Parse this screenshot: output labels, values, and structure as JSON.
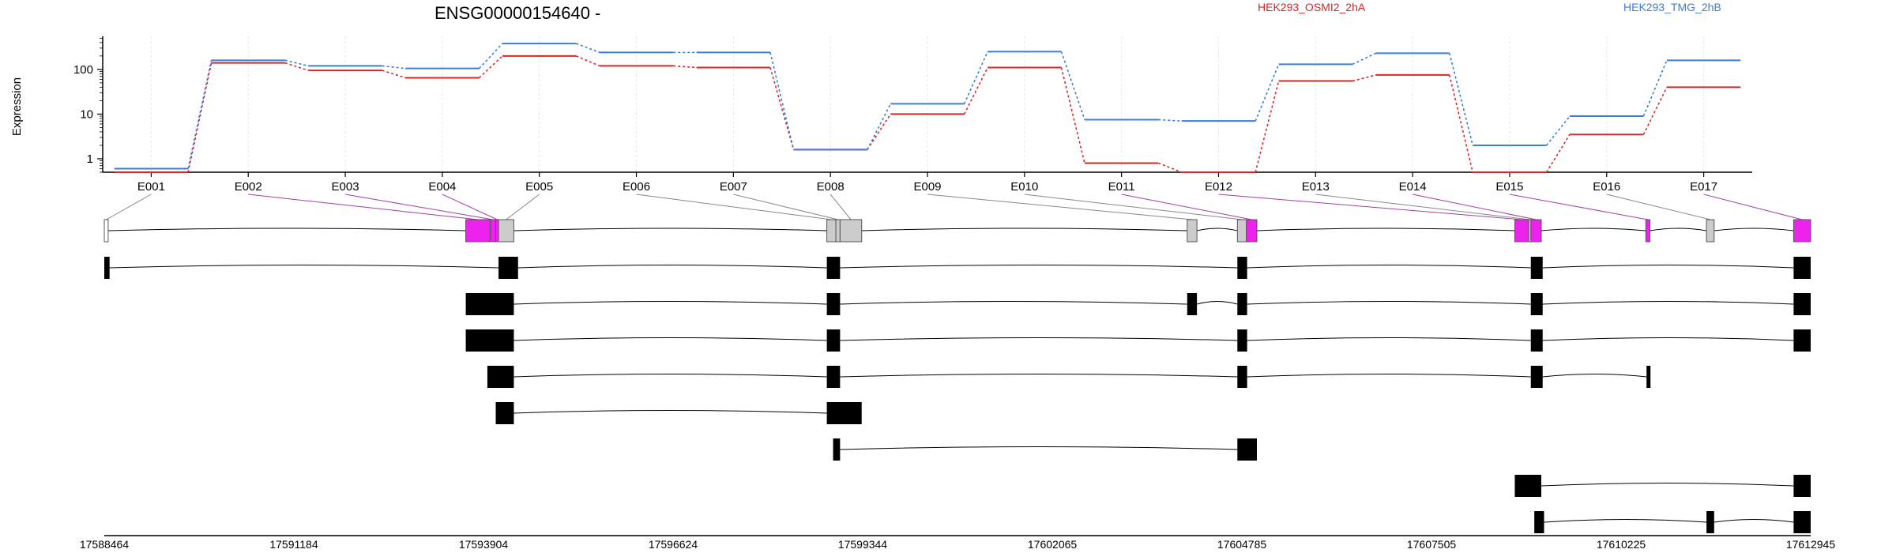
{
  "chart_data": {
    "type": "line",
    "title": "ENSG00000154640 -",
    "ylabel": "Expression",
    "xlabel": "",
    "yscale": "log",
    "ylim": [
      0.5,
      550
    ],
    "yticks": [
      "1",
      "10",
      "100"
    ],
    "ytick_values": [
      1,
      10,
      100
    ],
    "grid": true,
    "legend_placement": "top-right",
    "categories": [
      "E001",
      "E002",
      "E003",
      "E004",
      "E005",
      "E006",
      "E007",
      "E008",
      "E009",
      "E010",
      "E011",
      "E012",
      "E013",
      "E014",
      "E015",
      "E016",
      "E017"
    ],
    "series": [
      {
        "name": "HEK293_OSMI2_2hA",
        "color": "#d62728",
        "values": [
          0.5,
          140,
          95,
          65,
          200,
          120,
          110,
          1.6,
          10,
          110,
          0.8,
          0.5,
          55,
          75,
          0.5,
          3.5,
          40
        ]
      },
      {
        "name": "HEK293_TMG_2hB",
        "color": "#3b7dd8",
        "values": [
          0.6,
          160,
          120,
          105,
          380,
          240,
          240,
          1.6,
          17,
          250,
          7.5,
          7,
          130,
          230,
          2,
          9,
          160
        ]
      }
    ],
    "genome_axis": {
      "min": 17588464,
      "max": 17612945,
      "ticks": [
        17588464,
        17591184,
        17593904,
        17596624,
        17599344,
        17602065,
        17604785,
        17607505,
        17610225,
        17612945
      ],
      "tick_labels": [
        "17588464",
        "17591184",
        "17593904",
        "17596624",
        "17599344",
        "17602065",
        "17604785",
        "17607505",
        "17610225",
        "17612945"
      ]
    },
    "gene_model": {
      "color_highlight": "#ee22ee",
      "color_normal": "#cccccc",
      "exons": [
        {
          "id": "E001",
          "start": 17588464,
          "end": 17588520,
          "highlight": false,
          "outline": true
        },
        {
          "id": "E002",
          "start": 17593650,
          "end": 17594000,
          "highlight": true
        },
        {
          "id": "E003",
          "start": 17594000,
          "end": 17594080,
          "highlight": true
        },
        {
          "id": "E004",
          "start": 17594080,
          "end": 17594120,
          "highlight": true
        },
        {
          "id": "E005",
          "start": 17594120,
          "end": 17594340,
          "highlight": false
        },
        {
          "id": "E006",
          "start": 17598830,
          "end": 17598960,
          "highlight": false
        },
        {
          "id": "E007",
          "start": 17598960,
          "end": 17599020,
          "highlight": false
        },
        {
          "id": "E008",
          "start": 17599020,
          "end": 17599330,
          "highlight": false
        },
        {
          "id": "E009",
          "start": 17604000,
          "end": 17604140,
          "highlight": false
        },
        {
          "id": "E010",
          "start": 17604720,
          "end": 17604850,
          "highlight": false
        },
        {
          "id": "E011",
          "start": 17604850,
          "end": 17605000,
          "highlight": true
        },
        {
          "id": "E012",
          "start": 17608700,
          "end": 17608900,
          "highlight": true
        },
        {
          "id": "E013",
          "start": 17608900,
          "end": 17608930,
          "highlight": false
        },
        {
          "id": "E014",
          "start": 17608930,
          "end": 17609080,
          "highlight": true
        },
        {
          "id": "E015",
          "start": 17610580,
          "end": 17610640,
          "highlight": true
        },
        {
          "id": "E016",
          "start": 17611450,
          "end": 17611560,
          "highlight": false
        },
        {
          "id": "E017",
          "start": 17612700,
          "end": 17612945,
          "highlight": true
        }
      ]
    },
    "transcripts": [
      {
        "exons": [
          [
            17588464,
            17588540
          ],
          [
            17594120,
            17594400
          ],
          [
            17598830,
            17599020
          ],
          [
            17604720,
            17604860
          ],
          [
            17608930,
            17609100
          ],
          [
            17612700,
            17612945
          ]
        ]
      },
      {
        "exons": [
          [
            17593650,
            17594340
          ],
          [
            17598830,
            17599020
          ],
          [
            17604000,
            17604140
          ],
          [
            17604720,
            17604860
          ],
          [
            17608930,
            17609100
          ],
          [
            17612700,
            17612945
          ]
        ]
      },
      {
        "exons": [
          [
            17593650,
            17594340
          ],
          [
            17598830,
            17599020
          ],
          [
            17604720,
            17604860
          ],
          [
            17608930,
            17609100
          ],
          [
            17612700,
            17612945
          ]
        ]
      },
      {
        "exons": [
          [
            17593960,
            17594340
          ],
          [
            17598830,
            17599020
          ],
          [
            17604720,
            17604860
          ],
          [
            17608930,
            17609100
          ],
          [
            17610590,
            17610630
          ]
        ]
      },
      {
        "exons": [
          [
            17594080,
            17594340
          ],
          [
            17598830,
            17599330
          ]
        ]
      },
      {
        "exons": [
          [
            17598920,
            17599020
          ],
          [
            17604720,
            17605000
          ]
        ]
      },
      {
        "exons": [
          [
            17608700,
            17609080
          ],
          [
            17612700,
            17612945
          ]
        ]
      },
      {
        "exons": [
          [
            17608980,
            17609120
          ],
          [
            17611450,
            17611560
          ],
          [
            17612700,
            17612945
          ]
        ]
      }
    ]
  }
}
